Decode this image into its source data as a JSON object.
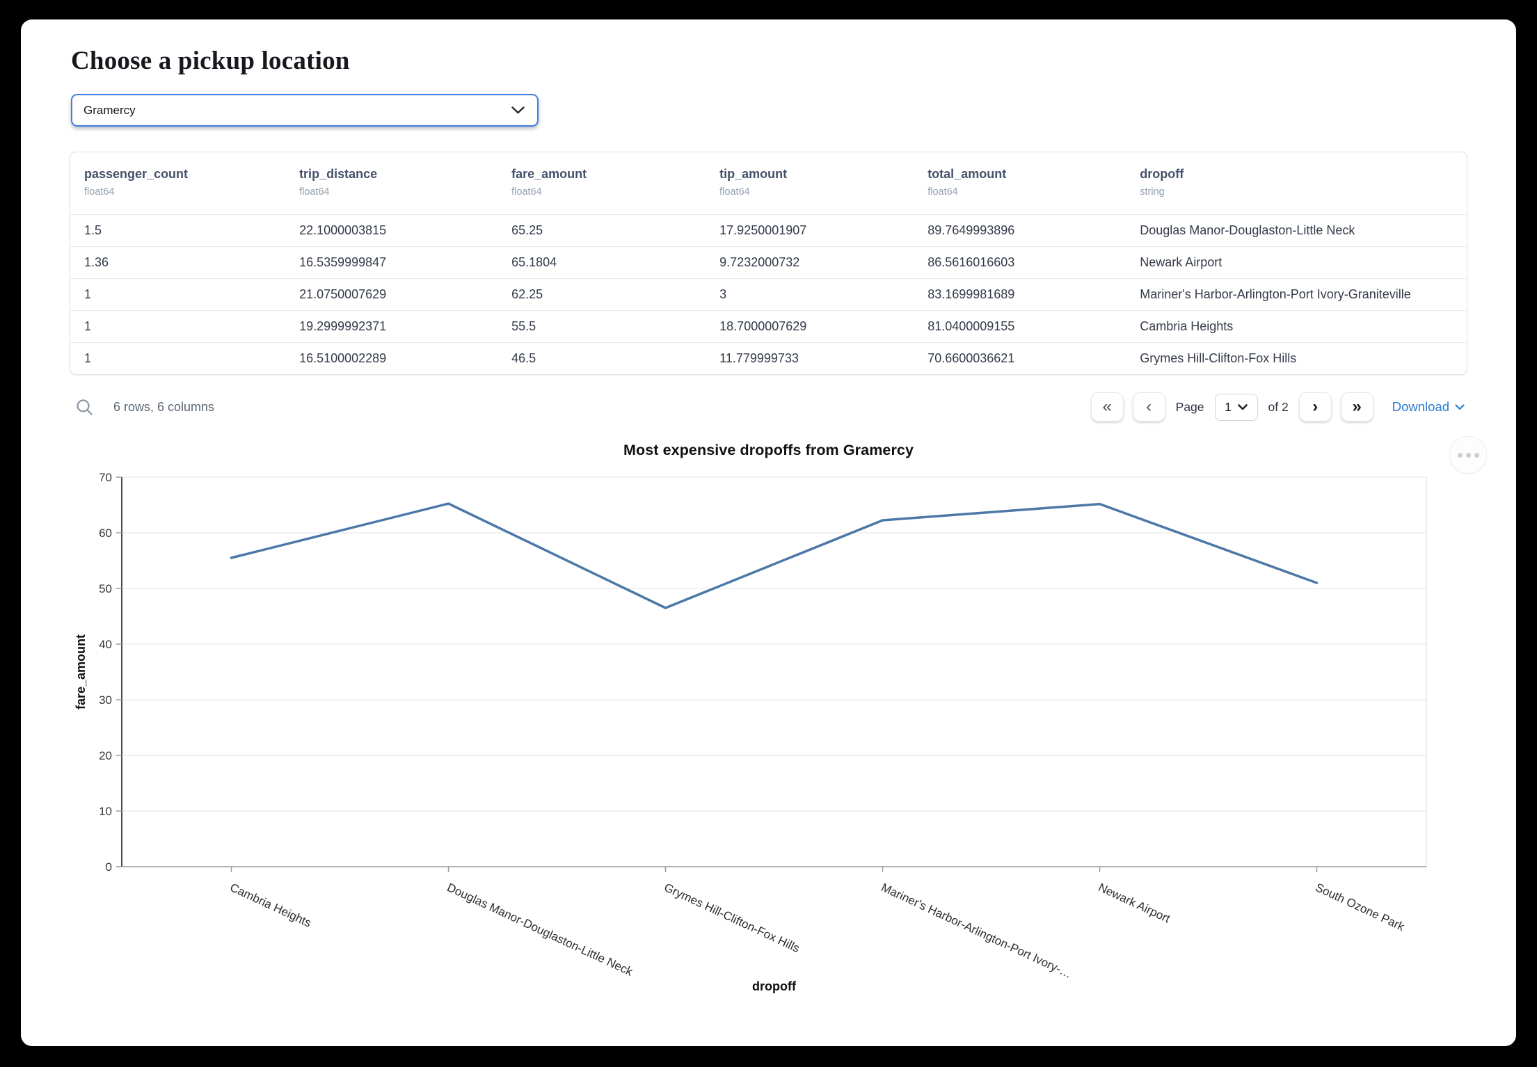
{
  "page": {
    "title": "Choose a pickup location"
  },
  "pickup_select": {
    "value": "Gramercy"
  },
  "table": {
    "columns": [
      {
        "name": "passenger_count",
        "dtype": "float64"
      },
      {
        "name": "trip_distance",
        "dtype": "float64"
      },
      {
        "name": "fare_amount",
        "dtype": "float64"
      },
      {
        "name": "tip_amount",
        "dtype": "float64"
      },
      {
        "name": "total_amount",
        "dtype": "float64"
      },
      {
        "name": "dropoff",
        "dtype": "string"
      }
    ],
    "rows": [
      [
        "1.5",
        "22.1000003815",
        "65.25",
        "17.9250001907",
        "89.7649993896",
        "Douglas Manor-Douglaston-Little Neck"
      ],
      [
        "1.36",
        "16.5359999847",
        "65.1804",
        "9.7232000732",
        "86.5616016603",
        "Newark Airport"
      ],
      [
        "1",
        "21.0750007629",
        "62.25",
        "3",
        "83.1699981689",
        "Mariner's Harbor-Arlington-Port Ivory-Graniteville"
      ],
      [
        "1",
        "19.2999992371",
        "55.5",
        "18.7000007629",
        "81.0400009155",
        "Cambria Heights"
      ],
      [
        "1",
        "16.5100002289",
        "46.5",
        "11.779999733",
        "70.6600036621",
        "Grymes Hill-Clifton-Fox Hills"
      ]
    ],
    "footer": {
      "summary": "6 rows, 6 columns",
      "page_label": "Page",
      "current_page": "1",
      "of_label": "of 2",
      "download_label": "Download"
    }
  },
  "icons": {
    "first_page": "«",
    "prev_page": "‹",
    "next_page": "›",
    "last_page": "»"
  },
  "chart_data": {
    "type": "line",
    "title": "Most expensive dropoffs from Gramercy",
    "xlabel": "dropoff",
    "ylabel": "fare_amount",
    "categories": [
      "Cambria Heights",
      "Douglas Manor-Douglaston-Little Neck",
      "Grymes Hill-Clifton-Fox Hills",
      "Mariner's Harbor-Arlington-Port Ivory-…",
      "Newark Airport",
      "South Ozone Park"
    ],
    "values": [
      55.5,
      65.25,
      46.5,
      62.25,
      65.1804,
      51
    ],
    "ylim": [
      0,
      70
    ],
    "yticks": [
      0,
      10,
      20,
      30,
      40,
      50,
      60,
      70
    ],
    "grid": true,
    "legend": "none",
    "label_angle": 25,
    "line_color": "#4c78a8"
  },
  "colors": {
    "accent_blue": "#3f7fe8",
    "link_blue": "#2a7ad4",
    "line_blue": "#4c78a8",
    "frame_black": "#000000"
  }
}
